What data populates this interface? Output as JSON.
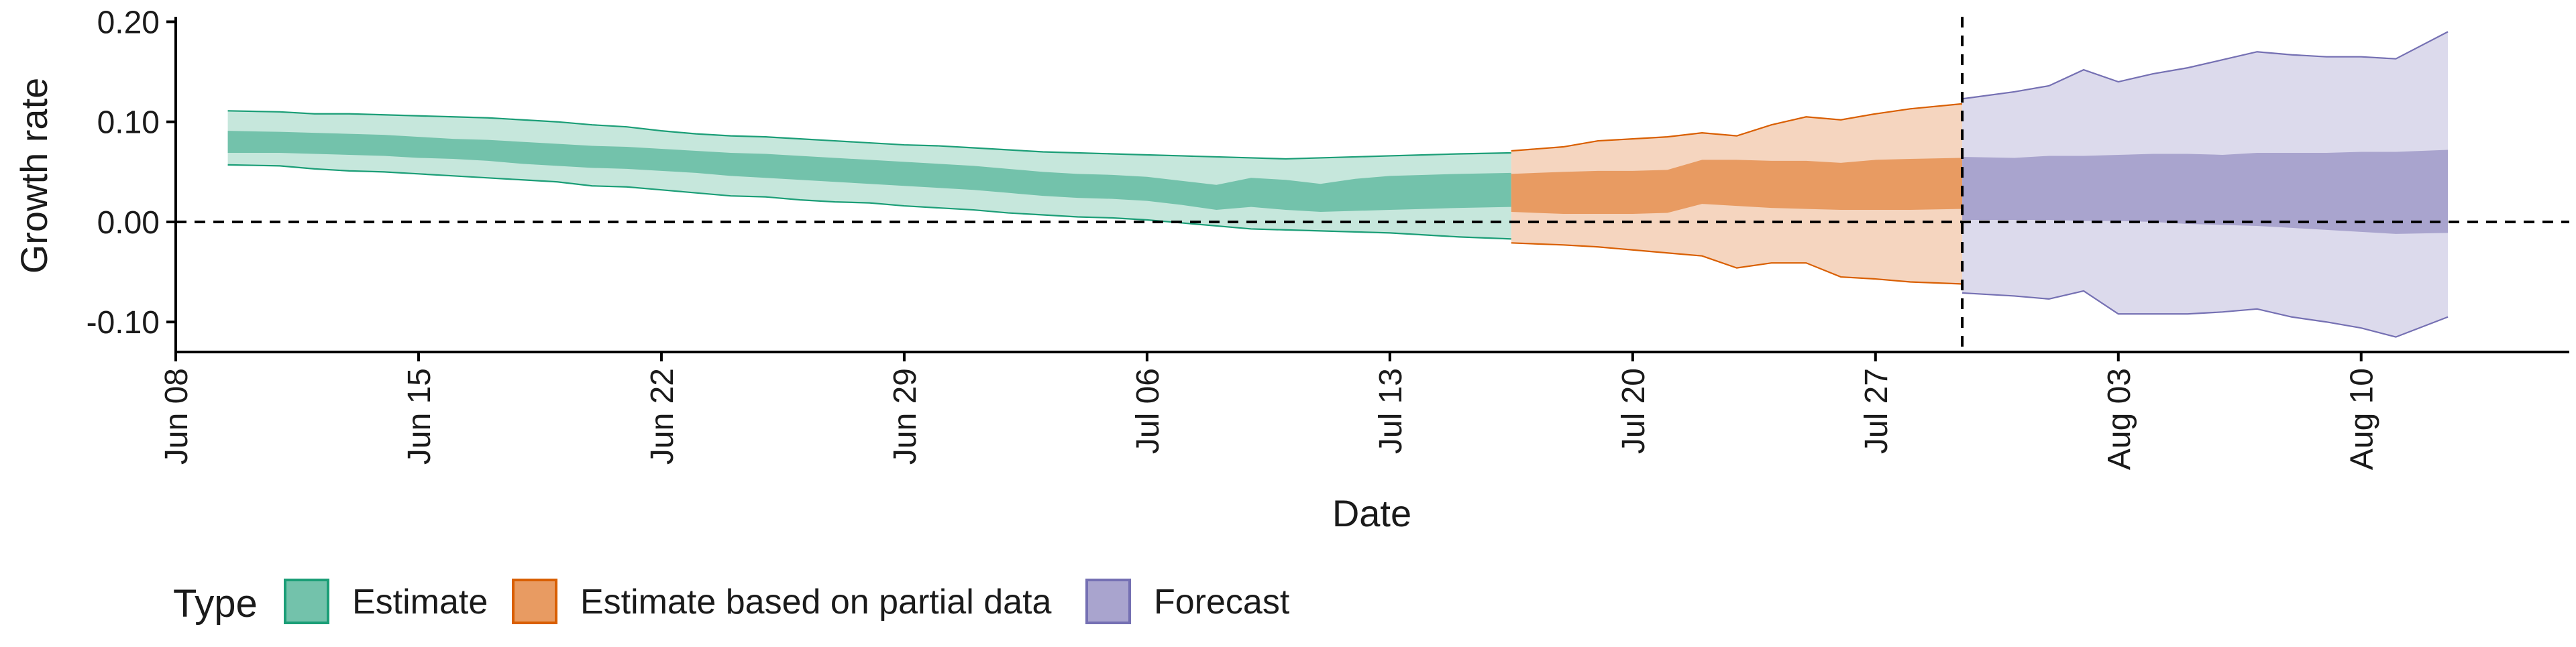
{
  "chart_data": {
    "type": "area",
    "xlabel": "Date",
    "ylabel": "Growth rate",
    "x_ticks": [
      "2020-06-08",
      "2020-06-15",
      "2020-06-22",
      "2020-06-29",
      "2020-07-06",
      "2020-07-13",
      "2020-07-20",
      "2020-07-27",
      "2020-08-03",
      "2020-08-10"
    ],
    "x_tick_labels": [
      "Jun 08",
      "Jun 15",
      "Jun 22",
      "Jun 29",
      "Jul 06",
      "Jul 13",
      "Jul 20",
      "Jul 27",
      "Aug 03",
      "Aug 10"
    ],
    "y_ticks": [
      -0.1,
      0.0,
      0.1,
      0.2
    ],
    "y_tick_labels": [
      "-0.10",
      "0.00",
      "0.10",
      "0.20"
    ],
    "xlim": [
      "2020-06-08",
      "2020-08-16"
    ],
    "ylim": [
      -0.13,
      0.205
    ],
    "grid": false,
    "hline_y": 0.0,
    "vline_x": "2020-07-29",
    "legend": {
      "title": "Type",
      "position": "bottom",
      "entries": [
        "Estimate",
        "Estimate based on partial data",
        "Forecast"
      ]
    },
    "series": [
      {
        "name": "Estimate",
        "color_dark": "#73c2ab",
        "color_light": "#c6e7dc",
        "color_edge": "#1b9e77",
        "x": [
          "2020-06-10",
          "2020-06-11",
          "2020-06-12",
          "2020-06-13",
          "2020-06-14",
          "2020-06-15",
          "2020-06-16",
          "2020-06-17",
          "2020-06-18",
          "2020-06-19",
          "2020-06-20",
          "2020-06-21",
          "2020-06-22",
          "2020-06-23",
          "2020-06-24",
          "2020-06-25",
          "2020-06-26",
          "2020-06-27",
          "2020-06-28",
          "2020-06-29",
          "2020-06-30",
          "2020-07-01",
          "2020-07-02",
          "2020-07-03",
          "2020-07-04",
          "2020-07-05",
          "2020-07-06",
          "2020-07-07",
          "2020-07-08",
          "2020-07-09",
          "2020-07-10",
          "2020-07-11",
          "2020-07-12",
          "2020-07-13",
          "2020-07-14",
          "2020-07-15",
          "2020-07-16"
        ],
        "lower_90": [
          0.057,
          0.056,
          0.053,
          0.051,
          0.05,
          0.048,
          0.046,
          0.044,
          0.042,
          0.04,
          0.036,
          0.035,
          0.032,
          0.029,
          0.026,
          0.025,
          0.022,
          0.02,
          0.019,
          0.016,
          0.014,
          0.012,
          0.009,
          0.007,
          0.005,
          0.004,
          0.002,
          -0.001,
          -0.004,
          -0.007,
          -0.008,
          -0.009,
          -0.01,
          -0.011,
          -0.013,
          -0.015,
          -0.017
        ],
        "upper_90": [
          0.111,
          0.11,
          0.108,
          0.108,
          0.107,
          0.106,
          0.105,
          0.104,
          0.102,
          0.1,
          0.097,
          0.095,
          0.091,
          0.088,
          0.086,
          0.085,
          0.083,
          0.081,
          0.079,
          0.077,
          0.076,
          0.074,
          0.072,
          0.07,
          0.069,
          0.068,
          0.067,
          0.066,
          0.065,
          0.064,
          0.063,
          0.064,
          0.065,
          0.066,
          0.067,
          0.068,
          0.069
        ],
        "lower_50": [
          0.069,
          0.069,
          0.068,
          0.067,
          0.066,
          0.064,
          0.063,
          0.061,
          0.058,
          0.056,
          0.054,
          0.053,
          0.051,
          0.049,
          0.046,
          0.044,
          0.042,
          0.04,
          0.038,
          0.036,
          0.034,
          0.032,
          0.029,
          0.026,
          0.024,
          0.023,
          0.021,
          0.017,
          0.012,
          0.015,
          0.012,
          0.01,
          0.011,
          0.012,
          0.013,
          0.014,
          0.015
        ],
        "upper_50": [
          0.091,
          0.09,
          0.089,
          0.088,
          0.087,
          0.085,
          0.083,
          0.082,
          0.08,
          0.078,
          0.076,
          0.075,
          0.073,
          0.071,
          0.069,
          0.068,
          0.066,
          0.064,
          0.062,
          0.06,
          0.058,
          0.056,
          0.053,
          0.05,
          0.048,
          0.047,
          0.045,
          0.041,
          0.037,
          0.044,
          0.042,
          0.038,
          0.043,
          0.046,
          0.047,
          0.048,
          0.049
        ]
      },
      {
        "name": "Estimate based on partial data",
        "color_dark": "#e89b62",
        "color_light": "#f5d5bf",
        "color_edge": "#d95f02",
        "x": [
          "2020-07-17",
          "2020-07-18",
          "2020-07-19",
          "2020-07-20",
          "2020-07-21",
          "2020-07-22",
          "2020-07-23",
          "2020-07-24",
          "2020-07-25",
          "2020-07-26",
          "2020-07-27",
          "2020-07-28",
          "2020-07-29"
        ],
        "lower_90": [
          -0.021,
          -0.023,
          -0.025,
          -0.028,
          -0.031,
          -0.034,
          -0.046,
          -0.041,
          -0.041,
          -0.055,
          -0.057,
          -0.06,
          -0.062
        ],
        "upper_90": [
          0.071,
          0.075,
          0.081,
          0.083,
          0.085,
          0.089,
          0.086,
          0.097,
          0.105,
          0.102,
          0.108,
          0.113,
          0.118
        ],
        "lower_50": [
          0.01,
          0.008,
          0.008,
          0.008,
          0.009,
          0.018,
          0.016,
          0.014,
          0.013,
          0.012,
          0.012,
          0.012,
          0.013
        ],
        "upper_50": [
          0.048,
          0.05,
          0.051,
          0.051,
          0.052,
          0.062,
          0.062,
          0.061,
          0.061,
          0.059,
          0.062,
          0.063,
          0.064
        ]
      },
      {
        "name": "Forecast",
        "color_dark": "#a9a4ce",
        "color_light": "#dcdaec",
        "color_edge": "#7570b3",
        "x": [
          "2020-07-30",
          "2020-07-31",
          "2020-08-01",
          "2020-08-02",
          "2020-08-03",
          "2020-08-04",
          "2020-08-05",
          "2020-08-06",
          "2020-08-07",
          "2020-08-08",
          "2020-08-09",
          "2020-08-10",
          "2020-08-11",
          "2020-08-12"
        ],
        "lower_90": [
          -0.071,
          -0.074,
          -0.077,
          -0.069,
          -0.092,
          -0.092,
          -0.092,
          -0.09,
          -0.087,
          -0.095,
          -0.1,
          -0.106,
          -0.115,
          -0.095
        ],
        "upper_90": [
          0.123,
          0.13,
          0.136,
          0.152,
          0.14,
          0.148,
          0.154,
          0.162,
          0.17,
          0.167,
          0.165,
          0.165,
          0.163,
          0.19
        ],
        "lower_50": [
          0.002,
          0.002,
          0.002,
          0.001,
          0.001,
          0.0,
          -0.002,
          -0.003,
          -0.004,
          -0.006,
          -0.008,
          -0.01,
          -0.012,
          -0.011
        ],
        "upper_50": [
          0.065,
          0.064,
          0.066,
          0.066,
          0.067,
          0.068,
          0.068,
          0.067,
          0.069,
          0.069,
          0.069,
          0.07,
          0.07,
          0.072
        ]
      }
    ]
  }
}
